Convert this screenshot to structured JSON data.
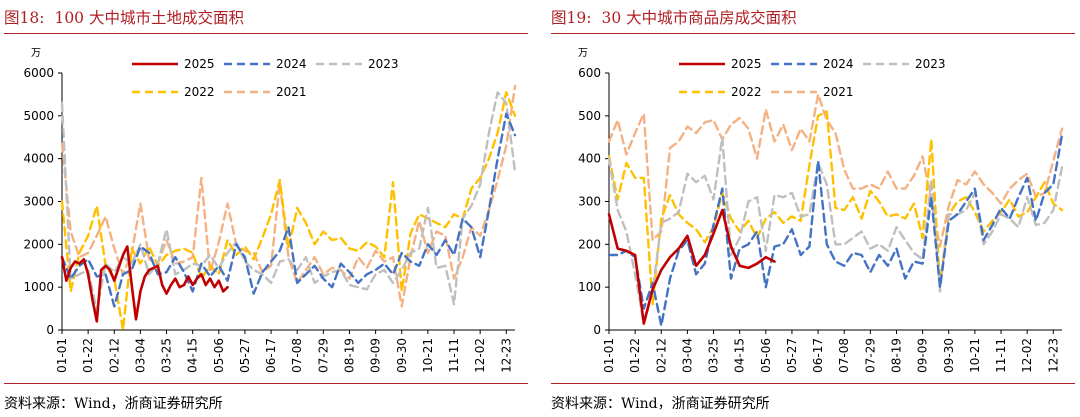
{
  "left": {
    "fig_num": "图18:",
    "title": "100 大中城市土地成交面积",
    "source": "资料来源：Wind，浙商证券研究所"
  },
  "right": {
    "fig_num": "图19:",
    "title": "30 大中城市商品房成交面积",
    "source": "资料来源：Wind，浙商证券研究所"
  },
  "chart_data": [
    {
      "type": "line",
      "title": "100 大中城市土地成交面积",
      "unit_label": "万",
      "ylim": [
        0,
        6000
      ],
      "yticks": [
        0,
        1000,
        2000,
        3000,
        4000,
        5000,
        6000
      ],
      "xlim": [
        0,
        52
      ],
      "xtick_labels": [
        "01-01",
        "01-22",
        "02-12",
        "03-04",
        "03-25",
        "04-15",
        "05-06",
        "05-27",
        "06-17",
        "07-08",
        "07-29",
        "08-19",
        "09-09",
        "09-30",
        "10-21",
        "11-11",
        "12-02",
        "12-23"
      ],
      "legend": "top, two rows",
      "series": [
        {
          "name": "2025",
          "color": "#c00000",
          "dash": "solid",
          "x": [
            0,
            0.5,
            1,
            1.5,
            2,
            2.5,
            3,
            3.5,
            4,
            4.5,
            5,
            5.5,
            6,
            6.5,
            7,
            7.5,
            8,
            8.5,
            9,
            9.5,
            10,
            10.5,
            11,
            11.5,
            12,
            12.5,
            13,
            13.5,
            14,
            14.5,
            15,
            15.5,
            16,
            16.5,
            17,
            17.5,
            18,
            18.5,
            19
          ],
          "y": [
            1700,
            1150,
            1450,
            1600,
            1550,
            1650,
            1300,
            700,
            200,
            1400,
            1500,
            1400,
            1150,
            1450,
            1750,
            1950,
            1050,
            250,
            900,
            1250,
            1400,
            1450,
            1500,
            1050,
            850,
            1050,
            1200,
            1000,
            1050,
            1250,
            1050,
            1200,
            1300,
            1050,
            1200,
            1000,
            1150,
            900,
            1000
          ]
        },
        {
          "name": "2024",
          "color": "#4472c4",
          "dash": "8,5",
          "x": [
            0,
            1,
            2,
            3,
            4,
            5,
            6,
            7,
            8,
            9,
            10,
            11,
            12,
            13,
            14,
            15,
            16,
            17,
            18,
            19,
            20,
            21,
            22,
            23,
            24,
            25,
            26,
            27,
            28,
            29,
            30,
            31,
            32,
            33,
            34,
            35,
            36,
            37,
            38,
            39,
            40,
            41,
            42,
            43,
            44,
            45,
            46,
            47,
            48,
            49,
            50,
            51,
            52
          ],
          "y": [
            1700,
            1200,
            1500,
            1650,
            1250,
            1300,
            550,
            1300,
            1400,
            1950,
            1800,
            1300,
            1350,
            1700,
            1350,
            900,
            1550,
            1250,
            1500,
            1150,
            2000,
            1700,
            850,
            1350,
            1600,
            1850,
            2400,
            1100,
            1300,
            1500,
            1200,
            1000,
            1550,
            1350,
            1100,
            1300,
            1400,
            1550,
            1300,
            1800,
            1600,
            1500,
            2000,
            1750,
            2100,
            1750,
            2600,
            2400,
            1700,
            2800,
            4000,
            5050,
            4550
          ]
        },
        {
          "name": "2023",
          "color": "#bfbfbf",
          "dash": "8,5",
          "x": [
            0,
            1,
            2,
            3,
            4,
            5,
            6,
            7,
            8,
            9,
            10,
            11,
            12,
            13,
            14,
            15,
            16,
            17,
            18,
            19,
            20,
            21,
            22,
            23,
            24,
            25,
            26,
            27,
            28,
            29,
            30,
            31,
            32,
            33,
            34,
            35,
            36,
            37,
            38,
            39,
            40,
            41,
            42,
            43,
            44,
            45,
            46,
            47,
            48,
            49,
            50,
            51,
            52
          ],
          "y": [
            5300,
            1200,
            1300,
            1400,
            450,
            1550,
            1350,
            1700,
            1550,
            2000,
            1300,
            1550,
            2350,
            1300,
            1400,
            1550,
            1500,
            1750,
            1450,
            1800,
            2050,
            1600,
            1400,
            1300,
            1100,
            1600,
            1650,
            1400,
            1700,
            1100,
            1250,
            1350,
            1400,
            1050,
            1000,
            950,
            1300,
            1400,
            1100,
            1400,
            1800,
            1900,
            2850,
            1450,
            1500,
            600,
            2600,
            2900,
            3400,
            4600,
            5550,
            5300,
            3700
          ]
        },
        {
          "name": "2022",
          "color": "#ffc000",
          "dash": "8,5",
          "x": [
            0,
            1,
            2,
            3,
            4,
            5,
            6,
            7,
            8,
            9,
            10,
            11,
            12,
            13,
            14,
            15,
            16,
            17,
            18,
            19,
            20,
            21,
            22,
            23,
            24,
            25,
            26,
            27,
            28,
            29,
            30,
            31,
            32,
            33,
            34,
            35,
            36,
            37,
            38,
            39,
            40,
            41,
            42,
            43,
            44,
            45,
            46,
            47,
            48,
            49,
            50,
            51,
            52
          ],
          "y": [
            3000,
            900,
            1800,
            2200,
            2900,
            1500,
            1200,
            0,
            1900,
            1550,
            1950,
            1500,
            1750,
            1850,
            1900,
            1800,
            1200,
            1500,
            1300,
            2100,
            1750,
            1950,
            1650,
            2150,
            2700,
            3500,
            1900,
            2850,
            2500,
            2000,
            2300,
            2100,
            2150,
            1900,
            1850,
            2050,
            1950,
            1700,
            3450,
            900,
            2250,
            2700,
            2600,
            2500,
            2400,
            2700,
            2600,
            3300,
            3550,
            4000,
            4600,
            5550,
            5000
          ]
        },
        {
          "name": "2021",
          "color": "#f4b183",
          "dash": "8,5",
          "x": [
            0,
            1,
            2,
            3,
            4,
            5,
            6,
            7,
            8,
            9,
            10,
            11,
            12,
            13,
            14,
            15,
            16,
            17,
            18,
            19,
            20,
            21,
            22,
            23,
            24,
            25,
            26,
            27,
            28,
            29,
            30,
            31,
            32,
            33,
            34,
            35,
            36,
            37,
            38,
            39,
            40,
            41,
            42,
            43,
            44,
            45,
            46,
            47,
            48,
            49,
            50,
            51,
            52
          ],
          "y": [
            4350,
            2300,
            1700,
            1800,
            2200,
            2650,
            1900,
            1300,
            1800,
            2950,
            1650,
            1550,
            2100,
            1550,
            1600,
            1700,
            3550,
            1350,
            2050,
            2950,
            2000,
            1850,
            1800,
            1350,
            1500,
            3450,
            1700,
            1100,
            1400,
            1700,
            1300,
            1450,
            1400,
            1200,
            1700,
            1450,
            1850,
            1600,
            1700,
            550,
            1700,
            2550,
            1800,
            2300,
            2200,
            1200,
            1700,
            2400,
            2200,
            2800,
            3500,
            4300,
            5700
          ]
        }
      ]
    },
    {
      "type": "line",
      "title": "30 大中城市商品房成交面积",
      "unit_label": "万",
      "ylim": [
        0,
        600
      ],
      "yticks": [
        0,
        100,
        200,
        300,
        400,
        500,
        600
      ],
      "xlim": [
        0,
        52
      ],
      "xtick_labels": [
        "01-01",
        "01-22",
        "02-12",
        "03-04",
        "03-25",
        "04-15",
        "05-06",
        "05-27",
        "06-17",
        "07-08",
        "07-29",
        "08-19",
        "09-09",
        "09-30",
        "10-21",
        "11-11",
        "12-02",
        "12-23"
      ],
      "legend": "top, two rows",
      "series": [
        {
          "name": "2025",
          "color": "#c00000",
          "dash": "solid",
          "x": [
            0,
            1,
            2,
            3,
            4,
            5,
            6,
            7,
            8,
            9,
            10,
            11,
            12,
            13,
            14,
            15,
            16,
            17,
            18,
            19
          ],
          "y": [
            270,
            190,
            185,
            175,
            15,
            95,
            140,
            170,
            190,
            220,
            150,
            175,
            225,
            280,
            195,
            150,
            145,
            155,
            170,
            160
          ]
        },
        {
          "name": "2024",
          "color": "#4472c4",
          "dash": "8,5",
          "x": [
            0,
            1,
            2,
            3,
            4,
            5,
            6,
            7,
            8,
            9,
            10,
            11,
            12,
            13,
            14,
            15,
            16,
            17,
            18,
            19,
            20,
            21,
            22,
            23,
            24,
            25,
            26,
            27,
            28,
            29,
            30,
            31,
            32,
            33,
            34,
            35,
            36,
            37,
            38,
            39,
            40,
            41,
            42,
            43,
            44,
            45,
            46,
            47,
            48,
            49,
            50,
            51,
            52
          ],
          "y": [
            175,
            175,
            185,
            170,
            50,
            110,
            10,
            120,
            185,
            210,
            130,
            155,
            245,
            330,
            120,
            190,
            200,
            230,
            100,
            195,
            200,
            235,
            175,
            195,
            395,
            200,
            160,
            150,
            180,
            175,
            135,
            175,
            150,
            190,
            120,
            160,
            155,
            310,
            100,
            255,
            270,
            300,
            330,
            210,
            245,
            285,
            260,
            310,
            355,
            255,
            320,
            340,
            455
          ]
        },
        {
          "name": "2023",
          "color": "#bfbfbf",
          "dash": "8,5",
          "x": [
            0,
            1,
            2,
            3,
            4,
            5,
            6,
            7,
            8,
            9,
            10,
            11,
            12,
            13,
            14,
            15,
            16,
            17,
            18,
            19,
            20,
            21,
            22,
            23,
            24,
            25,
            26,
            27,
            28,
            29,
            30,
            31,
            32,
            33,
            34,
            35,
            36,
            37,
            38,
            39,
            40,
            41,
            42,
            43,
            44,
            45,
            46,
            47,
            48,
            49,
            50,
            51,
            52
          ],
          "y": [
            400,
            280,
            230,
            130,
            15,
            90,
            250,
            260,
            275,
            365,
            345,
            360,
            305,
            450,
            175,
            215,
            300,
            310,
            185,
            315,
            310,
            320,
            265,
            270,
            390,
            340,
            200,
            200,
            215,
            230,
            190,
            200,
            185,
            240,
            210,
            180,
            165,
            350,
            90,
            270,
            270,
            280,
            320,
            200,
            230,
            270,
            260,
            240,
            310,
            245,
            250,
            280,
            380
          ]
        },
        {
          "name": "2022",
          "color": "#ffc000",
          "dash": "8,5",
          "x": [
            0,
            1,
            2,
            3,
            4,
            5,
            6,
            7,
            8,
            9,
            10,
            11,
            12,
            13,
            14,
            15,
            16,
            17,
            18,
            19,
            20,
            21,
            22,
            23,
            24,
            25,
            26,
            27,
            28,
            29,
            30,
            31,
            32,
            33,
            34,
            35,
            36,
            37,
            38,
            39,
            40,
            41,
            42,
            43,
            44,
            45,
            46,
            47,
            48,
            49,
            50,
            51,
            52
          ],
          "y": [
            405,
            305,
            390,
            355,
            355,
            60,
            260,
            315,
            270,
            250,
            235,
            205,
            240,
            320,
            260,
            230,
            255,
            215,
            260,
            275,
            250,
            265,
            255,
            385,
            500,
            510,
            285,
            280,
            310,
            260,
            325,
            300,
            265,
            270,
            260,
            295,
            215,
            445,
            105,
            270,
            300,
            310,
            275,
            230,
            255,
            275,
            305,
            265,
            275,
            310,
            345,
            295,
            280
          ]
        },
        {
          "name": "2021",
          "color": "#f4b183",
          "dash": "8,5",
          "x": [
            0,
            1,
            2,
            3,
            4,
            5,
            6,
            7,
            8,
            9,
            10,
            11,
            12,
            13,
            14,
            15,
            16,
            17,
            18,
            19,
            20,
            21,
            22,
            23,
            24,
            25,
            26,
            27,
            28,
            29,
            30,
            31,
            32,
            33,
            34,
            35,
            36,
            37,
            38,
            39,
            40,
            41,
            42,
            43,
            44,
            45,
            46,
            47,
            48,
            49,
            50,
            51,
            52
          ],
          "y": [
            440,
            490,
            410,
            460,
            505,
            210,
            230,
            425,
            440,
            475,
            460,
            485,
            490,
            445,
            480,
            495,
            470,
            400,
            515,
            440,
            480,
            420,
            470,
            440,
            550,
            490,
            460,
            375,
            330,
            330,
            340,
            330,
            370,
            330,
            330,
            360,
            405,
            300,
            195,
            290,
            350,
            340,
            370,
            340,
            320,
            295,
            330,
            350,
            365,
            310,
            320,
            395,
            470
          ]
        }
      ]
    }
  ]
}
